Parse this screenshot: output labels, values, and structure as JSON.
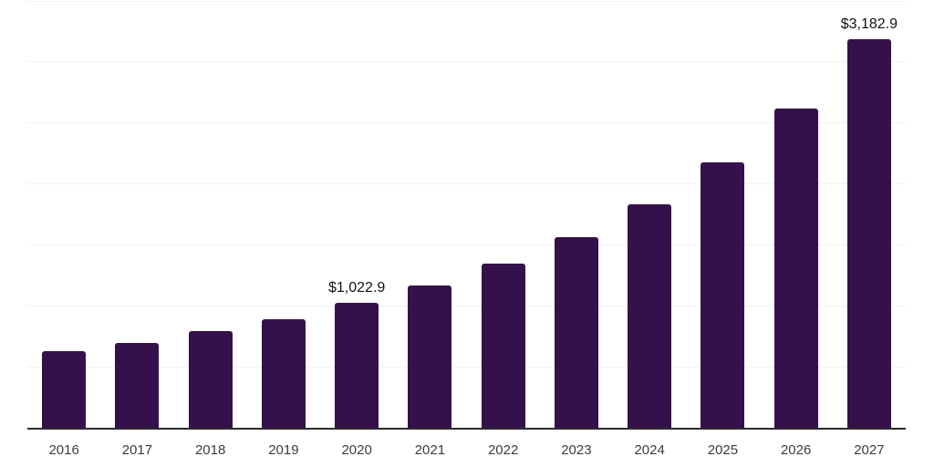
{
  "chart_data": {
    "type": "bar",
    "title": "",
    "xlabel": "",
    "ylabel": "",
    "categories": [
      "2016",
      "2017",
      "2018",
      "2019",
      "2020",
      "2021",
      "2022",
      "2023",
      "2024",
      "2025",
      "2026",
      "2027"
    ],
    "values": [
      625,
      695,
      790,
      890,
      1022.9,
      1165,
      1345,
      1560,
      1835,
      2180,
      2620,
      3182.9
    ],
    "value_labels": [
      {
        "index": 4,
        "text": "$1,022.9"
      },
      {
        "index": 11,
        "text": "$3,182.9"
      }
    ],
    "ylim": [
      0,
      3500
    ],
    "gridline_step": 500,
    "grid": true,
    "y_axis_tick_labels_visible": false,
    "legend": "none",
    "colors": {
      "bar": "#35114B",
      "axis_line": "#2B2B2B",
      "gridline": "#F2F2F2",
      "tick_label": "#3C3C3C",
      "value_label": "#121212"
    }
  }
}
